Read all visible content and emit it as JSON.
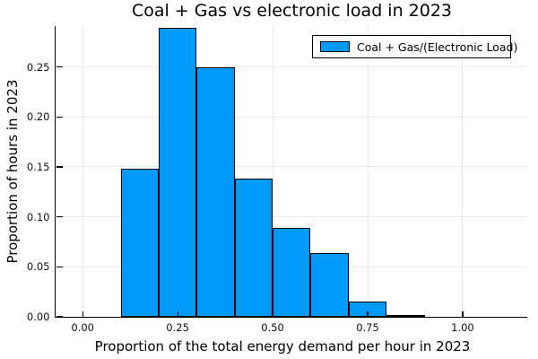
{
  "chart_data": {
    "type": "bar",
    "subtype": "histogram",
    "title": "Coal + Gas vs electronic load in 2023",
    "xlabel": "Proportion of the total energy demand per hour in 2023",
    "ylabel": "Proportion of hours in 2023",
    "legend": {
      "position": "top-right",
      "entries": [
        {
          "label": "Coal + Gas/(Electronic Load)",
          "color": "#009AF9"
        }
      ]
    },
    "bar_color": "#009AF9",
    "bar_edge_color": "#000000",
    "grid": true,
    "grid_color": "#eaeaea",
    "bin_width": 0.1,
    "bin_edges": [
      0.1,
      0.2,
      0.3,
      0.4,
      0.5,
      0.6,
      0.7,
      0.8
    ],
    "values": [
      0.148,
      0.289,
      0.25,
      0.138,
      0.089,
      0.064,
      0.015,
      0.002
    ],
    "xticks": {
      "values": [
        0,
        0.25,
        0.5,
        0.75,
        1.0
      ],
      "labels": [
        "0.00",
        "0.25",
        "0.50",
        "0.75",
        "1.00"
      ]
    },
    "yticks": {
      "values": [
        0,
        0.05,
        0.1,
        0.15,
        0.2,
        0.25
      ],
      "labels": [
        "0.00",
        "0.05",
        "0.10",
        "0.15",
        "0.20",
        "0.25"
      ]
    },
    "xlim": [
      -0.07,
      1.17
    ],
    "ylim": [
      0,
      0.291
    ]
  }
}
